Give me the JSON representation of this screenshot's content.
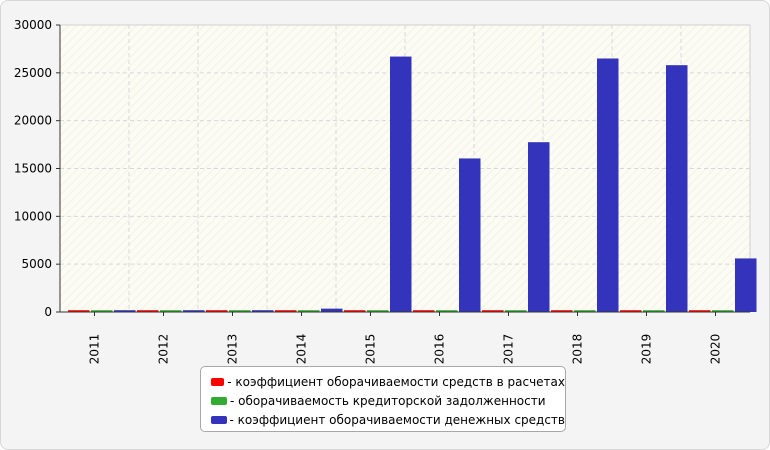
{
  "chart_data": {
    "type": "bar",
    "categories": [
      "2011",
      "2012",
      "2013",
      "2014",
      "2015",
      "2016",
      "2017",
      "2018",
      "2019",
      "2020"
    ],
    "series": [
      {
        "name": "- коэффициент оборачиваемости средств в расчетах",
        "color": "#ff0000",
        "values": [
          80,
          80,
          80,
          80,
          80,
          80,
          80,
          80,
          80,
          80
        ]
      },
      {
        "name": "- оборачиваемость кредиторской задолженности",
        "color": "#33aa33",
        "values": [
          60,
          60,
          60,
          60,
          60,
          60,
          60,
          60,
          60,
          60
        ]
      },
      {
        "name": "- коэффициент оборачиваемости денежных средств",
        "color": "#3333bb",
        "values": [
          120,
          150,
          120,
          350,
          26700,
          16050,
          17750,
          26500,
          25800,
          5600
        ]
      }
    ],
    "ylim": [
      0,
      30000
    ],
    "yticks": [
      "0",
      "5000",
      "10000",
      "15000",
      "20000",
      "25000",
      "30000"
    ],
    "grid": true,
    "legend_position": "bottom"
  }
}
